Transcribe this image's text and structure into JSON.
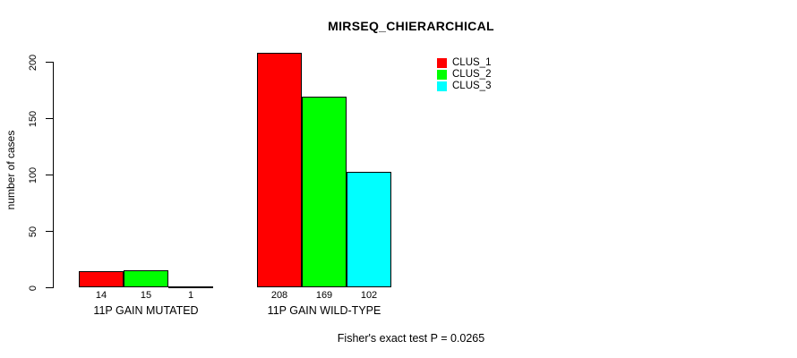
{
  "chart_data": {
    "type": "bar",
    "title": "MIRSEQ_CHIERARCHICAL",
    "ylabel": "number of cases",
    "xlabel": "",
    "categories": [
      "11P GAIN MUTATED",
      "11P GAIN WILD-TYPE"
    ],
    "series": [
      {
        "name": "CLUS_1",
        "color": "#ff0000",
        "values": [
          14,
          208
        ]
      },
      {
        "name": "CLUS_2",
        "color": "#00ff00",
        "values": [
          15,
          169
        ]
      },
      {
        "name": "CLUS_3",
        "color": "#00ffff",
        "values": [
          1,
          102
        ]
      }
    ],
    "yticks": [
      0,
      50,
      100,
      150,
      200
    ],
    "ylim": [
      0,
      200
    ],
    "bar_value_labels": [
      [
        "14",
        "15",
        "1"
      ],
      [
        "208",
        "169",
        "102"
      ]
    ],
    "legend_position": "top-right",
    "grid": false,
    "annotation": "Fisher's exact test P = 0.0265"
  }
}
